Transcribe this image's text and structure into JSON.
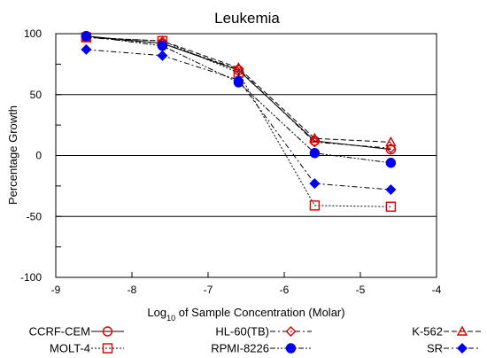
{
  "chart_data": {
    "type": "line",
    "title": "Leukemia",
    "xlabel": {
      "prefix": "Log",
      "sub": "10",
      "suffix": " of Sample Concentration (Molar)"
    },
    "ylabel": "Percentage Growth",
    "xlim": [
      -9,
      -4
    ],
    "ylim": [
      -100,
      100
    ],
    "x_ticks": [
      "-9",
      "-8",
      "-7",
      "-6",
      "-5",
      "-4"
    ],
    "y_ticks": [
      "100",
      "50",
      "0",
      "-50",
      "-100"
    ],
    "grid": "horizontal lines at 50, 0 and -50",
    "legend_position": "bottom",
    "series": [
      {
        "name": "CCRF-CEM",
        "marker": "circle-open",
        "line": "solid",
        "color": "#dd0000",
        "line_color": "#000000",
        "x": [
          -8.6,
          -7.6,
          -6.6,
          -5.6,
          -4.6
        ],
        "y": [
          98,
          92,
          70,
          12,
          5
        ]
      },
      {
        "name": "HL-60(TB)",
        "marker": "diamond-open",
        "line": "dashdot",
        "color": "#dd0000",
        "line_color": "#000000",
        "x": [
          -8.6,
          -7.6,
          -6.6,
          -5.6,
          -4.6
        ],
        "y": [
          97,
          92,
          71,
          11,
          6
        ]
      },
      {
        "name": "K-562",
        "marker": "triangle-open",
        "line": "dashed",
        "color": "#dd0000",
        "line_color": "#000000",
        "x": [
          -8.6,
          -7.6,
          -6.6,
          -5.6,
          -4.6
        ],
        "y": [
          97,
          94,
          72,
          14,
          11
        ]
      },
      {
        "name": "MOLT-4",
        "marker": "square-open",
        "line": "dotted",
        "color": "#dd0000",
        "line_color": "#000000",
        "x": [
          -8.6,
          -7.6,
          -6.6,
          -5.6,
          -4.6
        ],
        "y": [
          97,
          94,
          68,
          -41,
          -42
        ]
      },
      {
        "name": "RPMI-8226",
        "marker": "circle-filled",
        "line": "dashdotdot",
        "color": "#0000ee",
        "line_color": "#000000",
        "x": [
          -8.6,
          -7.6,
          -6.6,
          -5.6,
          -4.6
        ],
        "y": [
          98,
          90,
          60,
          2,
          -6
        ]
      },
      {
        "name": "SR",
        "marker": "diamond-filled",
        "line": "dashdot",
        "color": "#0000ee",
        "line_color": "#000000",
        "x": [
          -8.6,
          -7.6,
          -6.6,
          -5.6,
          -4.6
        ],
        "y": [
          87,
          82,
          62,
          -23,
          -28
        ]
      }
    ]
  }
}
